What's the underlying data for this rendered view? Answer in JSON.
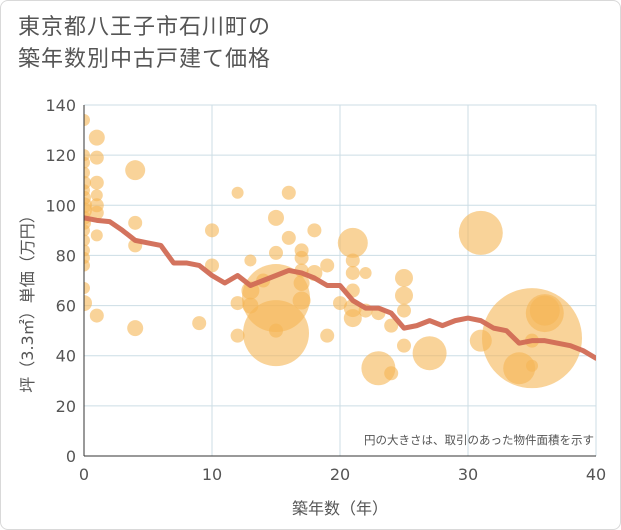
{
  "title_lines": [
    "東京都八王子市石川町の",
    "築年数別中古戸建て価格"
  ],
  "chart_data": {
    "type": "scatter",
    "title": "東京都八王子市石川町の築年数別中古戸建て価格",
    "xlabel": "築年数（年）",
    "ylabel": "坪（3.3㎡）単価（万円）",
    "xlim": [
      0,
      40
    ],
    "ylim": [
      0,
      140
    ],
    "xticks": [
      0,
      10,
      20,
      30,
      40
    ],
    "yticks": [
      0,
      20,
      40,
      60,
      80,
      100,
      120,
      140
    ],
    "grid": true,
    "note": "円の大きさは、取引のあった物件面積を示す",
    "colors": {
      "bubble": "#f5b555",
      "trend": "#d16b55",
      "grid": "#ccdde5",
      "axis": "#333333"
    },
    "bubbles": [
      {
        "x": 0,
        "y": 134,
        "s": 6
      },
      {
        "x": 0,
        "y": 120,
        "s": 6
      },
      {
        "x": 0,
        "y": 117,
        "s": 6
      },
      {
        "x": 0,
        "y": 113,
        "s": 6
      },
      {
        "x": 0,
        "y": 109,
        "s": 7
      },
      {
        "x": 0,
        "y": 106,
        "s": 6
      },
      {
        "x": 0,
        "y": 103,
        "s": 7
      },
      {
        "x": 0,
        "y": 100,
        "s": 8
      },
      {
        "x": 0,
        "y": 98,
        "s": 8
      },
      {
        "x": 0,
        "y": 95,
        "s": 7
      },
      {
        "x": 0,
        "y": 93,
        "s": 7
      },
      {
        "x": 0,
        "y": 90,
        "s": 6
      },
      {
        "x": 0,
        "y": 86,
        "s": 6
      },
      {
        "x": 0,
        "y": 82,
        "s": 6
      },
      {
        "x": 0,
        "y": 79,
        "s": 6
      },
      {
        "x": 0,
        "y": 76,
        "s": 6
      },
      {
        "x": 0,
        "y": 67,
        "s": 6
      },
      {
        "x": 0,
        "y": 61,
        "s": 8
      },
      {
        "x": 1,
        "y": 127,
        "s": 8
      },
      {
        "x": 1,
        "y": 119,
        "s": 7
      },
      {
        "x": 1,
        "y": 109,
        "s": 7
      },
      {
        "x": 1,
        "y": 104,
        "s": 6
      },
      {
        "x": 1,
        "y": 100,
        "s": 7
      },
      {
        "x": 1,
        "y": 97,
        "s": 7
      },
      {
        "x": 1,
        "y": 88,
        "s": 6
      },
      {
        "x": 1,
        "y": 56,
        "s": 7
      },
      {
        "x": 4,
        "y": 114,
        "s": 10
      },
      {
        "x": 4,
        "y": 93,
        "s": 7
      },
      {
        "x": 4,
        "y": 84,
        "s": 7
      },
      {
        "x": 4,
        "y": 51,
        "s": 8
      },
      {
        "x": 9,
        "y": 53,
        "s": 7
      },
      {
        "x": 10,
        "y": 90,
        "s": 7
      },
      {
        "x": 10,
        "y": 76,
        "s": 7
      },
      {
        "x": 12,
        "y": 105,
        "s": 6
      },
      {
        "x": 12,
        "y": 61,
        "s": 7
      },
      {
        "x": 12,
        "y": 48,
        "s": 7
      },
      {
        "x": 13,
        "y": 78,
        "s": 6
      },
      {
        "x": 13,
        "y": 66,
        "s": 9
      },
      {
        "x": 13,
        "y": 60,
        "s": 8
      },
      {
        "x": 14,
        "y": 70,
        "s": 7
      },
      {
        "x": 15,
        "y": 95,
        "s": 8
      },
      {
        "x": 15,
        "y": 81,
        "s": 7
      },
      {
        "x": 15,
        "y": 63,
        "s": 34
      },
      {
        "x": 15,
        "y": 49,
        "s": 33
      },
      {
        "x": 15,
        "y": 50,
        "s": 7
      },
      {
        "x": 16,
        "y": 105,
        "s": 7
      },
      {
        "x": 16,
        "y": 87,
        "s": 7
      },
      {
        "x": 17,
        "y": 82,
        "s": 7
      },
      {
        "x": 17,
        "y": 79,
        "s": 7
      },
      {
        "x": 17,
        "y": 74,
        "s": 7
      },
      {
        "x": 17,
        "y": 69,
        "s": 8
      },
      {
        "x": 17,
        "y": 62,
        "s": 9
      },
      {
        "x": 18,
        "y": 90,
        "s": 7
      },
      {
        "x": 18,
        "y": 73,
        "s": 8
      },
      {
        "x": 19,
        "y": 76,
        "s": 7
      },
      {
        "x": 19,
        "y": 48,
        "s": 7
      },
      {
        "x": 20,
        "y": 61,
        "s": 7
      },
      {
        "x": 21,
        "y": 85,
        "s": 15
      },
      {
        "x": 21,
        "y": 78,
        "s": 7
      },
      {
        "x": 21,
        "y": 73,
        "s": 7
      },
      {
        "x": 21,
        "y": 66,
        "s": 7
      },
      {
        "x": 21,
        "y": 59,
        "s": 9
      },
      {
        "x": 21,
        "y": 55,
        "s": 9
      },
      {
        "x": 22,
        "y": 73,
        "s": 6
      },
      {
        "x": 22,
        "y": 58,
        "s": 7
      },
      {
        "x": 23,
        "y": 57,
        "s": 7
      },
      {
        "x": 23,
        "y": 35,
        "s": 17
      },
      {
        "x": 24,
        "y": 52,
        "s": 7
      },
      {
        "x": 24,
        "y": 33,
        "s": 7
      },
      {
        "x": 25,
        "y": 71,
        "s": 9
      },
      {
        "x": 25,
        "y": 64,
        "s": 9
      },
      {
        "x": 25,
        "y": 58,
        "s": 7
      },
      {
        "x": 25,
        "y": 44,
        "s": 7
      },
      {
        "x": 27,
        "y": 41,
        "s": 17
      },
      {
        "x": 31,
        "y": 89,
        "s": 22
      },
      {
        "x": 31,
        "y": 46,
        "s": 11
      },
      {
        "x": 34,
        "y": 35,
        "s": 16
      },
      {
        "x": 35,
        "y": 47,
        "s": 50
      },
      {
        "x": 35,
        "y": 46,
        "s": 7
      },
      {
        "x": 35,
        "y": 36,
        "s": 6
      },
      {
        "x": 36,
        "y": 57,
        "s": 19
      },
      {
        "x": 36,
        "y": 58,
        "s": 15
      }
    ],
    "trend": {
      "x": [
        0,
        1,
        2,
        3,
        4,
        5,
        6,
        7,
        8,
        9,
        10,
        11,
        12,
        13,
        14,
        15,
        16,
        17,
        18,
        19,
        20,
        21,
        22,
        23,
        24,
        25,
        26,
        27,
        28,
        29,
        30,
        31,
        32,
        33,
        34,
        35,
        36,
        37,
        38,
        39,
        40
      ],
      "y": [
        95,
        94,
        93.5,
        90,
        86,
        85,
        84,
        77,
        77,
        76,
        72,
        69,
        72,
        68,
        70,
        72,
        74,
        73,
        71,
        68,
        68,
        62,
        59,
        59,
        57,
        51,
        52,
        54,
        52,
        54,
        55,
        54,
        51,
        50,
        45,
        46,
        46,
        45,
        44,
        42,
        39
      ]
    }
  }
}
